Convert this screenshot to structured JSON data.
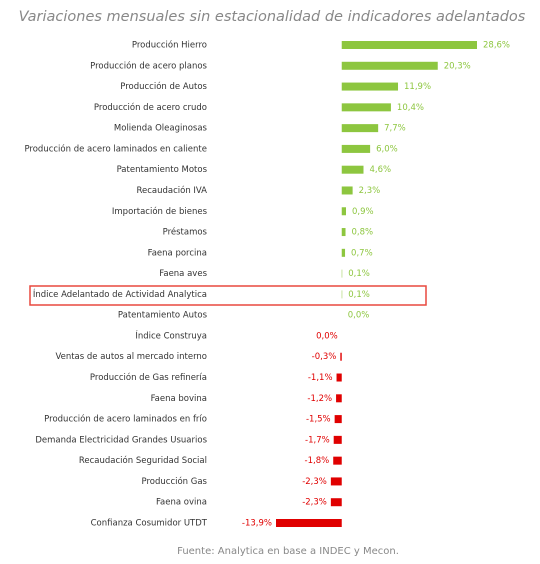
{
  "chart_data": {
    "type": "bar",
    "orientation": "horizontal",
    "title": "Variaciones mensuales sin estacionalidad de indicadores adelantados",
    "source": "Fuente: Analytica en base a INDEC y Mecon.",
    "categories": [
      "Producción Hierro",
      "Producción de acero planos",
      "Producción de Autos",
      "Producción de acero crudo",
      "Molienda Oleaginosas",
      "Producción de acero laminados en caliente",
      "Patentamiento Motos",
      "Recaudación IVA",
      "Importación de bienes",
      "Préstamos",
      "Faena porcina",
      "Faena aves",
      "Índice Adelantado de Actividad Analytica",
      "Patentamiento Autos",
      "Índice Construya",
      "Ventas de autos al mercado interno",
      "Producción de Gas refinería",
      "Faena bovina",
      "Producción de acero laminados en frío",
      "Demanda Electricidad Grandes Usuarios",
      "Recaudación Seguridad Social",
      "Producción Gas",
      "Faena ovina",
      "Confianza Cosumidor UTDT"
    ],
    "values": [
      28.6,
      20.3,
      11.9,
      10.4,
      7.7,
      6.0,
      4.6,
      2.3,
      0.9,
      0.8,
      0.7,
      0.1,
      0.1,
      0.0,
      -0.0,
      -0.3,
      -1.1,
      -1.2,
      -1.5,
      -1.7,
      -1.8,
      -2.3,
      -2.3,
      -13.9
    ],
    "value_labels": [
      "28,6%",
      "20,3%",
      "11,9%",
      "10,4%",
      "7,7%",
      "6,0%",
      "4,6%",
      "2,3%",
      "0,9%",
      "0,8%",
      "0,7%",
      "0,1%",
      "0,1%",
      "0,0%",
      "0,0%",
      "-0,3%",
      "-1,1%",
      "-1,2%",
      "-1,5%",
      "-1,7%",
      "-1,8%",
      "-2,3%",
      "-2,3%",
      "-13,9%"
    ],
    "positive_color": "#8dc63f",
    "negative_color": "#e00000"
  }
}
